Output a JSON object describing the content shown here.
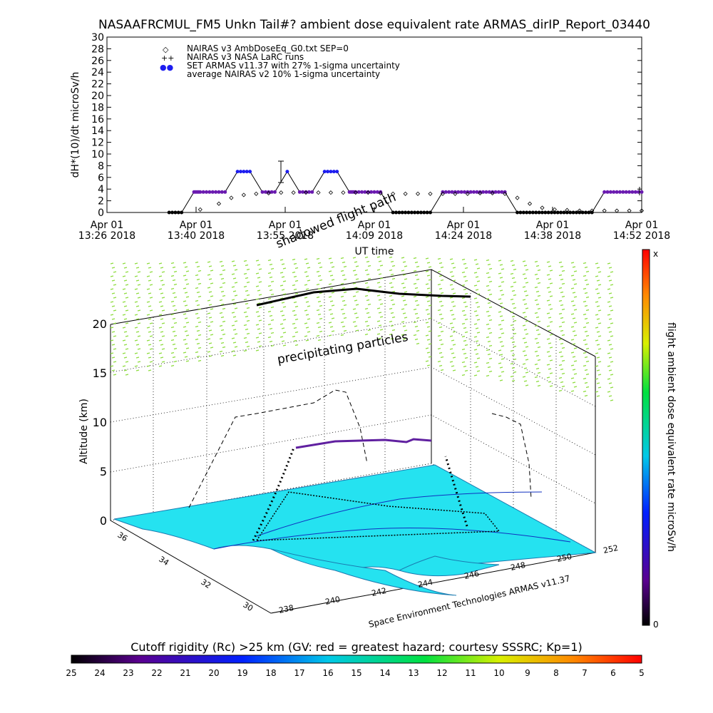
{
  "page": {
    "title": "NASAAFRCMUL_FM5 Unkn Tail#? ambient dose equivalent rate ARMAS_dirIP_Report_03440"
  },
  "chart_data": [
    {
      "type": "scatter",
      "ylabel": "dH*(10)/dt microSv/h",
      "xlabel": "UT time",
      "ylim": [
        0,
        30
      ],
      "yticks": [
        "0",
        "2",
        "4",
        "6",
        "8",
        "10",
        "12",
        "14",
        "16",
        "18",
        "20",
        "22",
        "24",
        "26",
        "28",
        "30"
      ],
      "xticks": [
        {
          "l1": "Apr 01",
          "l2": "13:26 2018"
        },
        {
          "l1": "Apr 01",
          "l2": "13:40 2018"
        },
        {
          "l1": "Apr 01",
          "l2": "13:55 2018"
        },
        {
          "l1": "Apr 01",
          "l2": "14:09 2018"
        },
        {
          "l1": "Apr 01",
          "l2": "14:24 2018"
        },
        {
          "l1": "Apr 01",
          "l2": "14:38 2018"
        },
        {
          "l1": "Apr 01",
          "l2": "14:52 2018"
        }
      ],
      "xlim_minutes": [
        0,
        86
      ],
      "legend": [
        {
          "symbol": "◇",
          "color": "#000000",
          "label": "NAIRAS v3 AmbDoseEq_G0.txt SEP=0"
        },
        {
          "symbol": "++",
          "color": "#000000",
          "label": "NAIRAS v3 NASA LaRC runs"
        },
        {
          "symbol": "●●",
          "color": "#1d1df0",
          "label": "SET ARMAS v11.37 with 27% 1-sigma uncertainty"
        },
        {
          "symbol": "",
          "color": "#000000",
          "label": "average NAIRAS v2 10% 1-sigma uncertainty"
        }
      ],
      "series": [
        {
          "name": "SET ARMAS v11.37 with 27% 1-sigma uncertainty",
          "x": [
            10,
            12,
            14,
            15,
            17,
            19,
            21,
            23,
            25,
            27,
            29,
            31,
            33,
            35,
            37,
            39,
            40,
            42,
            44,
            46,
            48,
            50,
            52,
            54,
            56,
            58,
            60,
            62,
            64,
            66,
            68,
            70,
            72,
            74,
            76,
            78,
            80,
            82,
            84,
            86
          ],
          "y": [
            0,
            0,
            3.5,
            3.5,
            3.5,
            3.5,
            7,
            7,
            3.5,
            3.5,
            7,
            3.5,
            3.5,
            7,
            7,
            3.5,
            3.5,
            3.5,
            3.5,
            0,
            0,
            0,
            0,
            3.5,
            3.5,
            3.5,
            3.5,
            3.5,
            3.5,
            0,
            0,
            0,
            0,
            0,
            0,
            0,
            3.5,
            3.5,
            3.5,
            3.5
          ]
        },
        {
          "name": "NAIRAS v3 AmbDoseEq_G0.txt SEP=0",
          "x": [
            15,
            18,
            20,
            22,
            24,
            26,
            28,
            30,
            32,
            34,
            36,
            38,
            40,
            42,
            44,
            46,
            48,
            50,
            52,
            54,
            56,
            58,
            60,
            62,
            64,
            66,
            68,
            70,
            72,
            74,
            76,
            78,
            80,
            82,
            84,
            86
          ],
          "y": [
            0.5,
            1.5,
            2.5,
            3,
            3.2,
            3.3,
            3.4,
            3.4,
            3.4,
            3.4,
            3.4,
            3.4,
            3.4,
            3.4,
            3.3,
            3.2,
            3.2,
            3.2,
            3.2,
            3.2,
            3.2,
            3.2,
            3.3,
            3.3,
            3.2,
            2.5,
            1.5,
            0.8,
            0.5,
            0.4,
            0.3,
            0.3,
            0.3,
            0.3,
            0.3,
            0.3
          ]
        }
      ]
    },
    {
      "type": "scatter",
      "labels": {
        "shadowed": "shadowed flight path",
        "precip": "precipitating particles",
        "credit": "Space Environment Technologies ARMAS v11.37",
        "zlabel": "Altitude (km)",
        "colorbar_label": "flight ambient dose equivalent rate microSv/h",
        "colorbar_top": "x",
        "colorbar_bottom": "0"
      },
      "zticks": [
        "0",
        "5",
        "10",
        "15",
        "20"
      ],
      "lat_ticks": [
        "36",
        "34",
        "32",
        "30"
      ],
      "lon_ticks": [
        "238",
        "240",
        "242",
        "244",
        "246",
        "248",
        "250",
        "252"
      ]
    },
    {
      "type": "heatmap",
      "title": "Cutoff rigidity (Rc) >25 km (GV: red = greatest hazard; courtesy SSSRC; Kp=1)",
      "ticks": [
        "25",
        "24",
        "23",
        "22",
        "21",
        "20",
        "19",
        "18",
        "17",
        "16",
        "15",
        "14",
        "13",
        "12",
        "11",
        "10",
        "9",
        "8",
        "7",
        "6",
        "5"
      ]
    }
  ]
}
